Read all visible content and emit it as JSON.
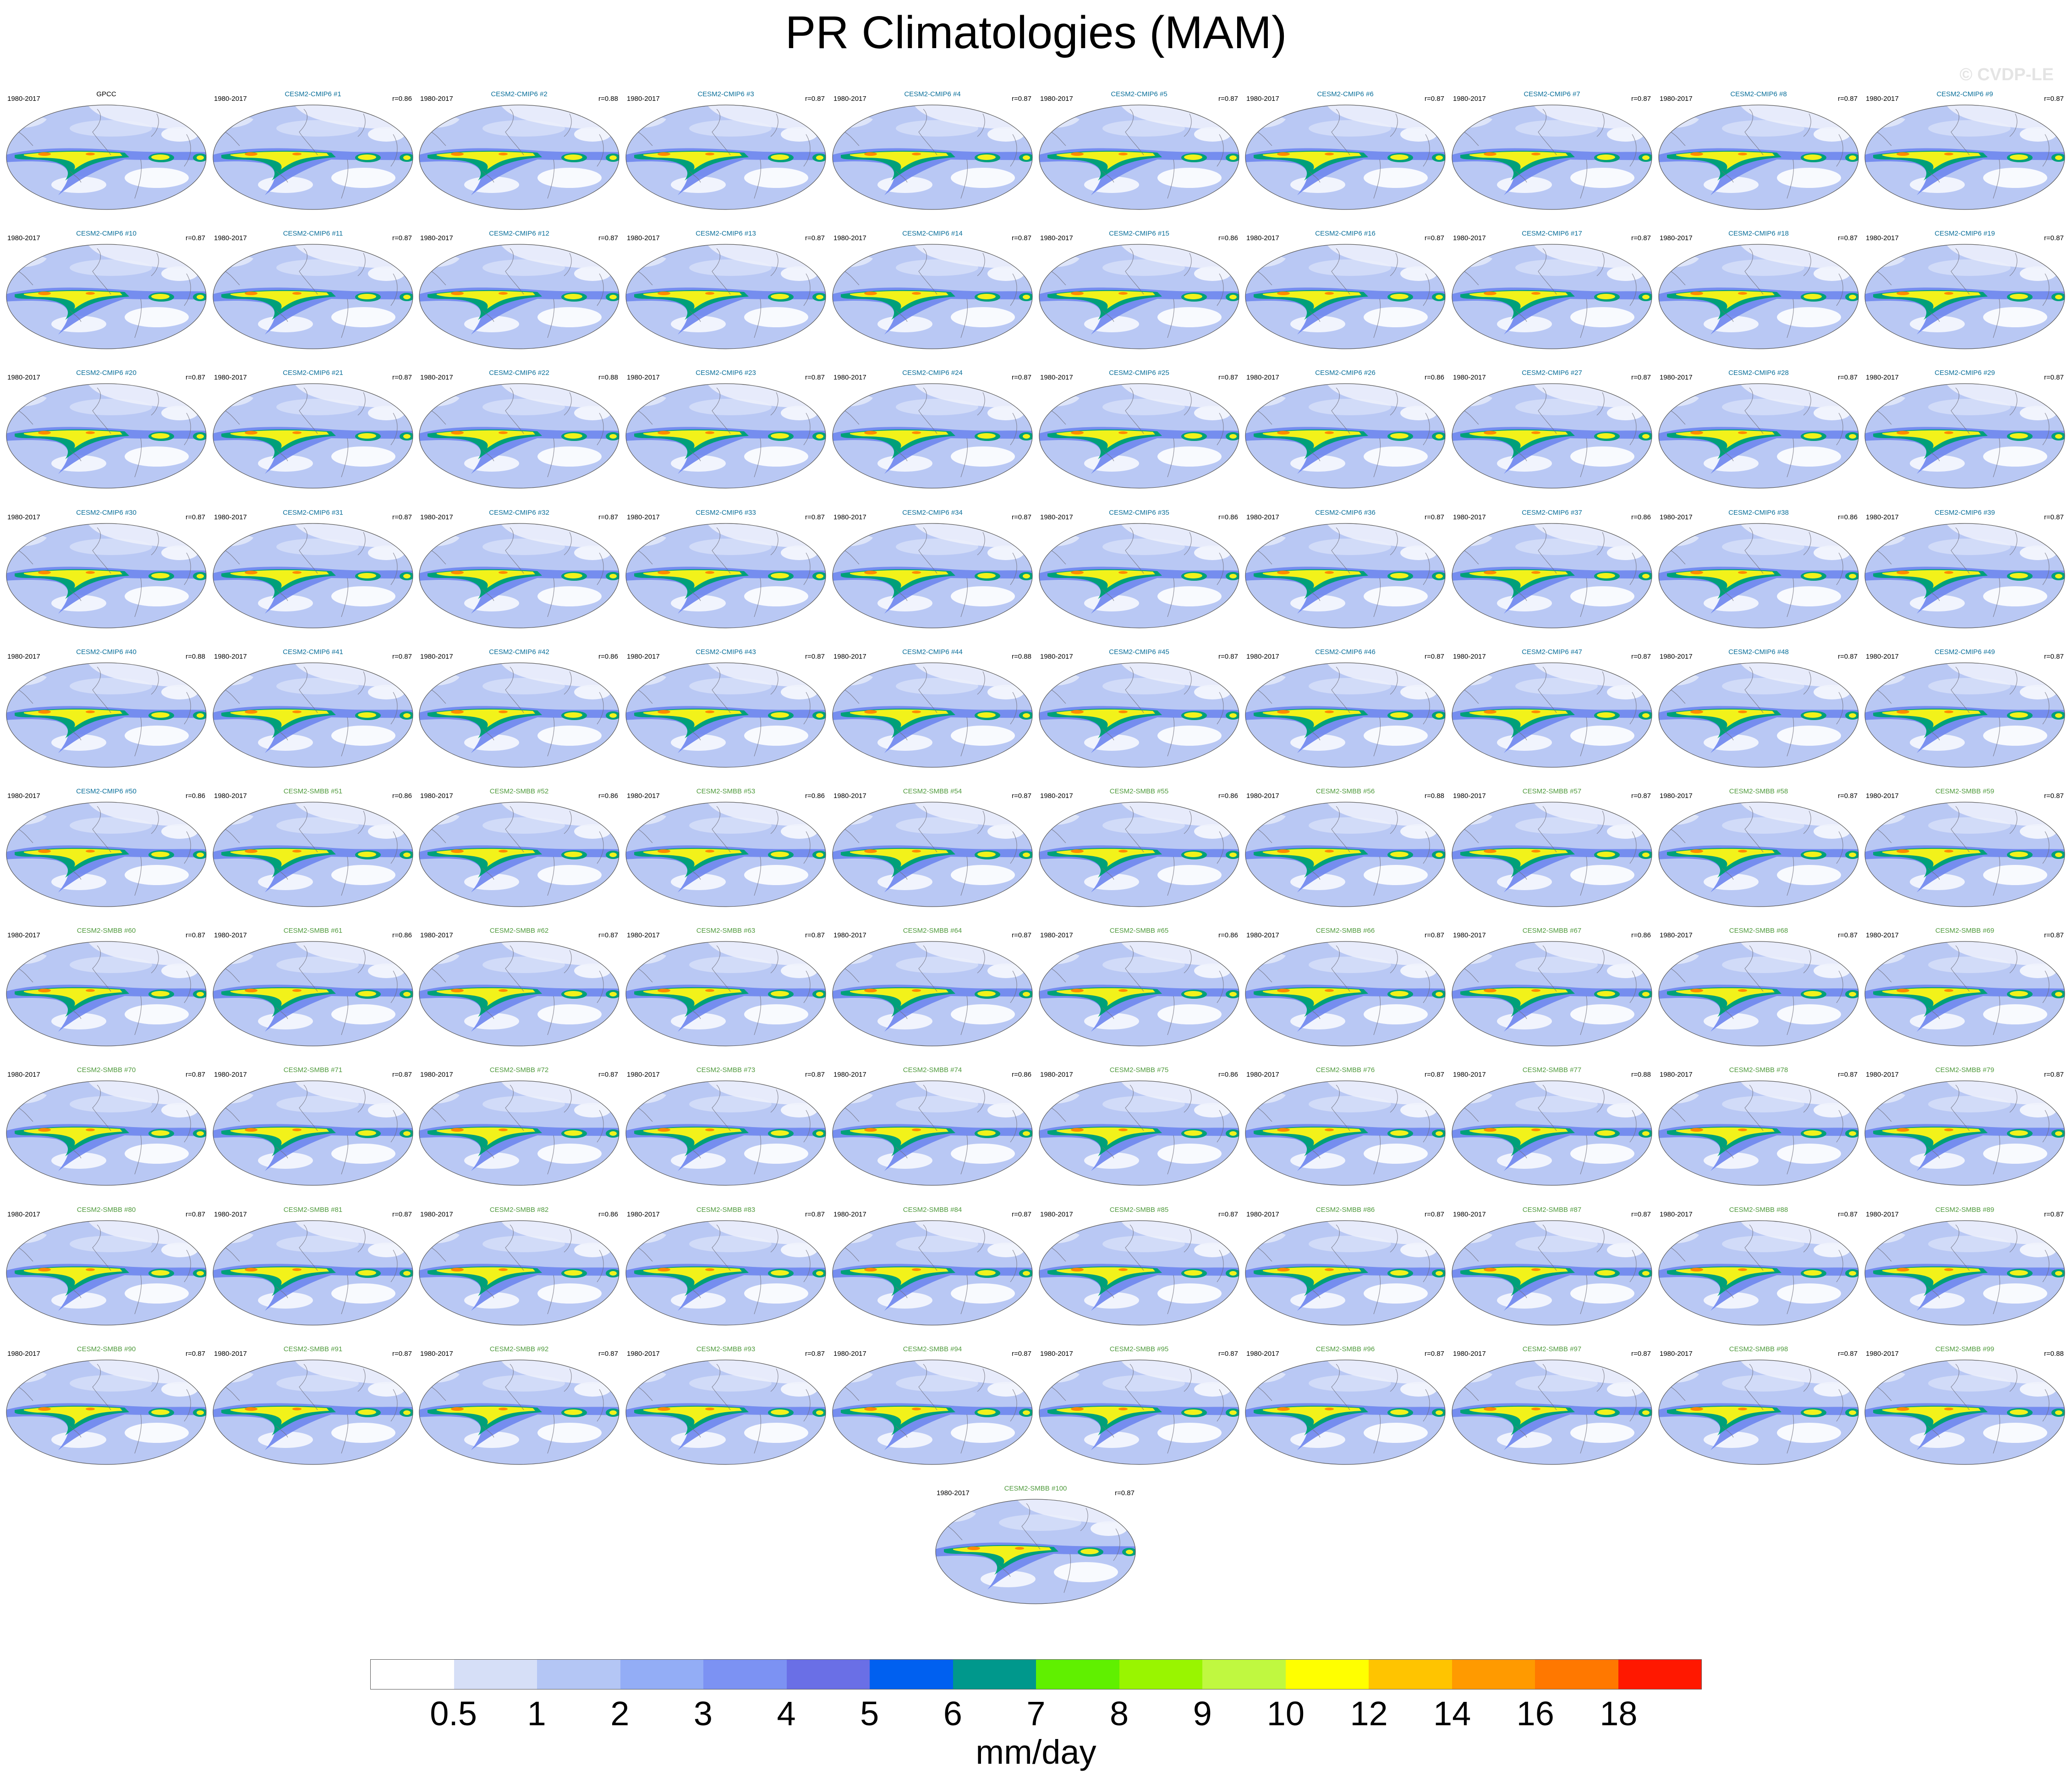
{
  "title": "PR Climatologies (MAM)",
  "watermark": "© CVDP-LE",
  "chart_data": {
    "type": "heatmap",
    "description_type": "filled-contour global map panels",
    "title": "PR Climatologies (MAM)",
    "units": "mm/day",
    "contour_levels": [
      0.5,
      1,
      2,
      3,
      4,
      5,
      6,
      7,
      8,
      9,
      10,
      12,
      14,
      16,
      18
    ],
    "colors": [
      "#ffffff",
      "#d6dff7",
      "#b4c6f5",
      "#93adf6",
      "#7c92f3",
      "#6a6fe6",
      "#0060f0",
      "#00988c",
      "#60f000",
      "#99f500",
      "#c0f840",
      "#ffff00",
      "#ffc400",
      "#ff9a00",
      "#ff7800",
      "#ff1800"
    ],
    "reference": {
      "label": "GPCC",
      "period": "1980-2017"
    },
    "panels": [
      {
        "label": "GPCC",
        "period": "1980-2017",
        "r": "",
        "ens": "obs"
      },
      {
        "label": "CESM2-CMIP6 #1",
        "period": "1980-2017",
        "r": "r=0.86",
        "ens": "cmip6"
      },
      {
        "label": "CESM2-CMIP6 #2",
        "period": "1980-2017",
        "r": "r=0.88",
        "ens": "cmip6"
      },
      {
        "label": "CESM2-CMIP6 #3",
        "period": "1980-2017",
        "r": "r=0.87",
        "ens": "cmip6"
      },
      {
        "label": "CESM2-CMIP6 #4",
        "period": "1980-2017",
        "r": "r=0.87",
        "ens": "cmip6"
      },
      {
        "label": "CESM2-CMIP6 #5",
        "period": "1980-2017",
        "r": "r=0.87",
        "ens": "cmip6"
      },
      {
        "label": "CESM2-CMIP6 #6",
        "period": "1980-2017",
        "r": "r=0.87",
        "ens": "cmip6"
      },
      {
        "label": "CESM2-CMIP6 #7",
        "period": "1980-2017",
        "r": "r=0.87",
        "ens": "cmip6"
      },
      {
        "label": "CESM2-CMIP6 #8",
        "period": "1980-2017",
        "r": "r=0.87",
        "ens": "cmip6"
      },
      {
        "label": "CESM2-CMIP6 #9",
        "period": "1980-2017",
        "r": "r=0.87",
        "ens": "cmip6"
      },
      {
        "label": "CESM2-CMIP6 #10",
        "period": "1980-2017",
        "r": "r=0.87",
        "ens": "cmip6"
      },
      {
        "label": "CESM2-CMIP6 #11",
        "period": "1980-2017",
        "r": "r=0.87",
        "ens": "cmip6"
      },
      {
        "label": "CESM2-CMIP6 #12",
        "period": "1980-2017",
        "r": "r=0.87",
        "ens": "cmip6"
      },
      {
        "label": "CESM2-CMIP6 #13",
        "period": "1980-2017",
        "r": "r=0.87",
        "ens": "cmip6"
      },
      {
        "label": "CESM2-CMIP6 #14",
        "period": "1980-2017",
        "r": "r=0.87",
        "ens": "cmip6"
      },
      {
        "label": "CESM2-CMIP6 #15",
        "period": "1980-2017",
        "r": "r=0.86",
        "ens": "cmip6"
      },
      {
        "label": "CESM2-CMIP6 #16",
        "period": "1980-2017",
        "r": "r=0.87",
        "ens": "cmip6"
      },
      {
        "label": "CESM2-CMIP6 #17",
        "period": "1980-2017",
        "r": "r=0.87",
        "ens": "cmip6"
      },
      {
        "label": "CESM2-CMIP6 #18",
        "period": "1980-2017",
        "r": "r=0.87",
        "ens": "cmip6"
      },
      {
        "label": "CESM2-CMIP6 #19",
        "period": "1980-2017",
        "r": "r=0.87",
        "ens": "cmip6"
      },
      {
        "label": "CESM2-CMIP6 #20",
        "period": "1980-2017",
        "r": "r=0.87",
        "ens": "cmip6"
      },
      {
        "label": "CESM2-CMIP6 #21",
        "period": "1980-2017",
        "r": "r=0.87",
        "ens": "cmip6"
      },
      {
        "label": "CESM2-CMIP6 #22",
        "period": "1980-2017",
        "r": "r=0.88",
        "ens": "cmip6"
      },
      {
        "label": "CESM2-CMIP6 #23",
        "period": "1980-2017",
        "r": "r=0.87",
        "ens": "cmip6"
      },
      {
        "label": "CESM2-CMIP6 #24",
        "period": "1980-2017",
        "r": "r=0.87",
        "ens": "cmip6"
      },
      {
        "label": "CESM2-CMIP6 #25",
        "period": "1980-2017",
        "r": "r=0.87",
        "ens": "cmip6"
      },
      {
        "label": "CESM2-CMIP6 #26",
        "period": "1980-2017",
        "r": "r=0.86",
        "ens": "cmip6"
      },
      {
        "label": "CESM2-CMIP6 #27",
        "period": "1980-2017",
        "r": "r=0.87",
        "ens": "cmip6"
      },
      {
        "label": "CESM2-CMIP6 #28",
        "period": "1980-2017",
        "r": "r=0.87",
        "ens": "cmip6"
      },
      {
        "label": "CESM2-CMIP6 #29",
        "period": "1980-2017",
        "r": "r=0.87",
        "ens": "cmip6"
      },
      {
        "label": "CESM2-CMIP6 #30",
        "period": "1980-2017",
        "r": "r=0.87",
        "ens": "cmip6"
      },
      {
        "label": "CESM2-CMIP6 #31",
        "period": "1980-2017",
        "r": "r=0.87",
        "ens": "cmip6"
      },
      {
        "label": "CESM2-CMIP6 #32",
        "period": "1980-2017",
        "r": "r=0.87",
        "ens": "cmip6"
      },
      {
        "label": "CESM2-CMIP6 #33",
        "period": "1980-2017",
        "r": "r=0.87",
        "ens": "cmip6"
      },
      {
        "label": "CESM2-CMIP6 #34",
        "period": "1980-2017",
        "r": "r=0.87",
        "ens": "cmip6"
      },
      {
        "label": "CESM2-CMIP6 #35",
        "period": "1980-2017",
        "r": "r=0.86",
        "ens": "cmip6"
      },
      {
        "label": "CESM2-CMIP6 #36",
        "period": "1980-2017",
        "r": "r=0.87",
        "ens": "cmip6"
      },
      {
        "label": "CESM2-CMIP6 #37",
        "period": "1980-2017",
        "r": "r=0.86",
        "ens": "cmip6"
      },
      {
        "label": "CESM2-CMIP6 #38",
        "period": "1980-2017",
        "r": "r=0.86",
        "ens": "cmip6"
      },
      {
        "label": "CESM2-CMIP6 #39",
        "period": "1980-2017",
        "r": "r=0.87",
        "ens": "cmip6"
      },
      {
        "label": "CESM2-CMIP6 #40",
        "period": "1980-2017",
        "r": "r=0.88",
        "ens": "cmip6"
      },
      {
        "label": "CESM2-CMIP6 #41",
        "period": "1980-2017",
        "r": "r=0.87",
        "ens": "cmip6"
      },
      {
        "label": "CESM2-CMIP6 #42",
        "period": "1980-2017",
        "r": "r=0.86",
        "ens": "cmip6"
      },
      {
        "label": "CESM2-CMIP6 #43",
        "period": "1980-2017",
        "r": "r=0.87",
        "ens": "cmip6"
      },
      {
        "label": "CESM2-CMIP6 #44",
        "period": "1980-2017",
        "r": "r=0.88",
        "ens": "cmip6"
      },
      {
        "label": "CESM2-CMIP6 #45",
        "period": "1980-2017",
        "r": "r=0.87",
        "ens": "cmip6"
      },
      {
        "label": "CESM2-CMIP6 #46",
        "period": "1980-2017",
        "r": "r=0.87",
        "ens": "cmip6"
      },
      {
        "label": "CESM2-CMIP6 #47",
        "period": "1980-2017",
        "r": "r=0.87",
        "ens": "cmip6"
      },
      {
        "label": "CESM2-CMIP6 #48",
        "period": "1980-2017",
        "r": "r=0.87",
        "ens": "cmip6"
      },
      {
        "label": "CESM2-CMIP6 #49",
        "period": "1980-2017",
        "r": "r=0.87",
        "ens": "cmip6"
      },
      {
        "label": "CESM2-CMIP6 #50",
        "period": "1980-2017",
        "r": "r=0.86",
        "ens": "cmip6"
      },
      {
        "label": "CESM2-SMBB #51",
        "period": "1980-2017",
        "r": "r=0.86",
        "ens": "smbb"
      },
      {
        "label": "CESM2-SMBB #52",
        "period": "1980-2017",
        "r": "r=0.86",
        "ens": "smbb"
      },
      {
        "label": "CESM2-SMBB #53",
        "period": "1980-2017",
        "r": "r=0.86",
        "ens": "smbb"
      },
      {
        "label": "CESM2-SMBB #54",
        "period": "1980-2017",
        "r": "r=0.87",
        "ens": "smbb"
      },
      {
        "label": "CESM2-SMBB #55",
        "period": "1980-2017",
        "r": "r=0.86",
        "ens": "smbb"
      },
      {
        "label": "CESM2-SMBB #56",
        "period": "1980-2017",
        "r": "r=0.88",
        "ens": "smbb"
      },
      {
        "label": "CESM2-SMBB #57",
        "period": "1980-2017",
        "r": "r=0.87",
        "ens": "smbb"
      },
      {
        "label": "CESM2-SMBB #58",
        "period": "1980-2017",
        "r": "r=0.87",
        "ens": "smbb"
      },
      {
        "label": "CESM2-SMBB #59",
        "period": "1980-2017",
        "r": "r=0.87",
        "ens": "smbb"
      },
      {
        "label": "CESM2-SMBB #60",
        "period": "1980-2017",
        "r": "r=0.87",
        "ens": "smbb"
      },
      {
        "label": "CESM2-SMBB #61",
        "period": "1980-2017",
        "r": "r=0.86",
        "ens": "smbb"
      },
      {
        "label": "CESM2-SMBB #62",
        "period": "1980-2017",
        "r": "r=0.87",
        "ens": "smbb"
      },
      {
        "label": "CESM2-SMBB #63",
        "period": "1980-2017",
        "r": "r=0.87",
        "ens": "smbb"
      },
      {
        "label": "CESM2-SMBB #64",
        "period": "1980-2017",
        "r": "r=0.87",
        "ens": "smbb"
      },
      {
        "label": "CESM2-SMBB #65",
        "period": "1980-2017",
        "r": "r=0.86",
        "ens": "smbb"
      },
      {
        "label": "CESM2-SMBB #66",
        "period": "1980-2017",
        "r": "r=0.87",
        "ens": "smbb"
      },
      {
        "label": "CESM2-SMBB #67",
        "period": "1980-2017",
        "r": "r=0.86",
        "ens": "smbb"
      },
      {
        "label": "CESM2-SMBB #68",
        "period": "1980-2017",
        "r": "r=0.87",
        "ens": "smbb"
      },
      {
        "label": "CESM2-SMBB #69",
        "period": "1980-2017",
        "r": "r=0.87",
        "ens": "smbb"
      },
      {
        "label": "CESM2-SMBB #70",
        "period": "1980-2017",
        "r": "r=0.87",
        "ens": "smbb"
      },
      {
        "label": "CESM2-SMBB #71",
        "period": "1980-2017",
        "r": "r=0.87",
        "ens": "smbb"
      },
      {
        "label": "CESM2-SMBB #72",
        "period": "1980-2017",
        "r": "r=0.87",
        "ens": "smbb"
      },
      {
        "label": "CESM2-SMBB #73",
        "period": "1980-2017",
        "r": "r=0.87",
        "ens": "smbb"
      },
      {
        "label": "CESM2-SMBB #74",
        "period": "1980-2017",
        "r": "r=0.86",
        "ens": "smbb"
      },
      {
        "label": "CESM2-SMBB #75",
        "period": "1980-2017",
        "r": "r=0.86",
        "ens": "smbb"
      },
      {
        "label": "CESM2-SMBB #76",
        "period": "1980-2017",
        "r": "r=0.87",
        "ens": "smbb"
      },
      {
        "label": "CESM2-SMBB #77",
        "period": "1980-2017",
        "r": "r=0.88",
        "ens": "smbb"
      },
      {
        "label": "CESM2-SMBB #78",
        "period": "1980-2017",
        "r": "r=0.87",
        "ens": "smbb"
      },
      {
        "label": "CESM2-SMBB #79",
        "period": "1980-2017",
        "r": "r=0.87",
        "ens": "smbb"
      },
      {
        "label": "CESM2-SMBB #80",
        "period": "1980-2017",
        "r": "r=0.87",
        "ens": "smbb"
      },
      {
        "label": "CESM2-SMBB #81",
        "period": "1980-2017",
        "r": "r=0.87",
        "ens": "smbb"
      },
      {
        "label": "CESM2-SMBB #82",
        "period": "1980-2017",
        "r": "r=0.86",
        "ens": "smbb"
      },
      {
        "label": "CESM2-SMBB #83",
        "period": "1980-2017",
        "r": "r=0.87",
        "ens": "smbb"
      },
      {
        "label": "CESM2-SMBB #84",
        "period": "1980-2017",
        "r": "r=0.87",
        "ens": "smbb"
      },
      {
        "label": "CESM2-SMBB #85",
        "period": "1980-2017",
        "r": "r=0.87",
        "ens": "smbb"
      },
      {
        "label": "CESM2-SMBB #86",
        "period": "1980-2017",
        "r": "r=0.87",
        "ens": "smbb"
      },
      {
        "label": "CESM2-SMBB #87",
        "period": "1980-2017",
        "r": "r=0.87",
        "ens": "smbb"
      },
      {
        "label": "CESM2-SMBB #88",
        "period": "1980-2017",
        "r": "r=0.87",
        "ens": "smbb"
      },
      {
        "label": "CESM2-SMBB #89",
        "period": "1980-2017",
        "r": "r=0.87",
        "ens": "smbb"
      },
      {
        "label": "CESM2-SMBB #90",
        "period": "1980-2017",
        "r": "r=0.87",
        "ens": "smbb"
      },
      {
        "label": "CESM2-SMBB #91",
        "period": "1980-2017",
        "r": "r=0.87",
        "ens": "smbb"
      },
      {
        "label": "CESM2-SMBB #92",
        "period": "1980-2017",
        "r": "r=0.87",
        "ens": "smbb"
      },
      {
        "label": "CESM2-SMBB #93",
        "period": "1980-2017",
        "r": "r=0.87",
        "ens": "smbb"
      },
      {
        "label": "CESM2-SMBB #94",
        "period": "1980-2017",
        "r": "r=0.87",
        "ens": "smbb"
      },
      {
        "label": "CESM2-SMBB #95",
        "period": "1980-2017",
        "r": "r=0.87",
        "ens": "smbb"
      },
      {
        "label": "CESM2-SMBB #96",
        "period": "1980-2017",
        "r": "r=0.87",
        "ens": "smbb"
      },
      {
        "label": "CESM2-SMBB #97",
        "period": "1980-2017",
        "r": "r=0.87",
        "ens": "smbb"
      },
      {
        "label": "CESM2-SMBB #98",
        "period": "1980-2017",
        "r": "r=0.87",
        "ens": "smbb"
      },
      {
        "label": "CESM2-SMBB #99",
        "period": "1980-2017",
        "r": "r=0.88",
        "ens": "smbb"
      },
      {
        "label": "CESM2-SMBB #100",
        "period": "1980-2017",
        "r": "r=0.87",
        "ens": "smbb"
      }
    ]
  },
  "label_colors": {
    "obs": "#000000",
    "cmip6": "#0a6f9a",
    "smbb": "#4f9a3c"
  },
  "map_colors": {
    "ocean_base": "#b9c8f4",
    "land": "#eef1fb",
    "band_mid": "#6e86ee",
    "band_inner": "#00a07a",
    "band_core": "#f2f21a",
    "band_peak": "#ff8a00",
    "dry": "#ffffff",
    "coast": "#6d6d7a",
    "outline": "#555555"
  }
}
